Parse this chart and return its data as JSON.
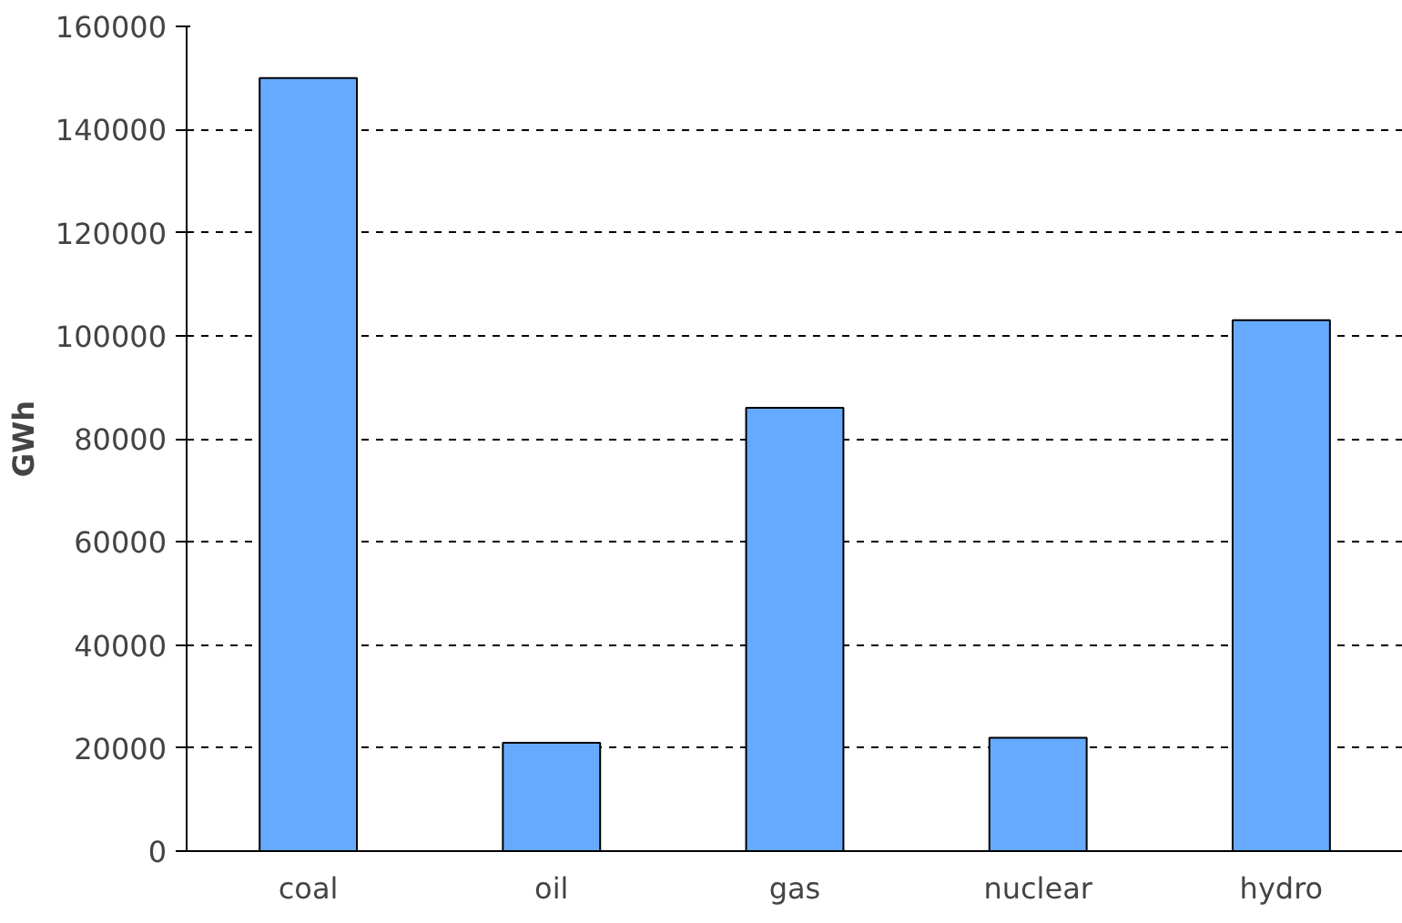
{
  "chart_data": {
    "type": "bar",
    "ylabel": "GWh",
    "categories": [
      "coal",
      "oil",
      "gas",
      "nuclear",
      "hydro"
    ],
    "values": [
      150000,
      21000,
      86000,
      22000,
      103000
    ],
    "color": "#66aaff",
    "ylim": [
      0,
      160000
    ],
    "yticks": [
      0,
      20000,
      40000,
      60000,
      80000,
      100000,
      120000,
      140000,
      160000
    ],
    "grid": "y"
  }
}
